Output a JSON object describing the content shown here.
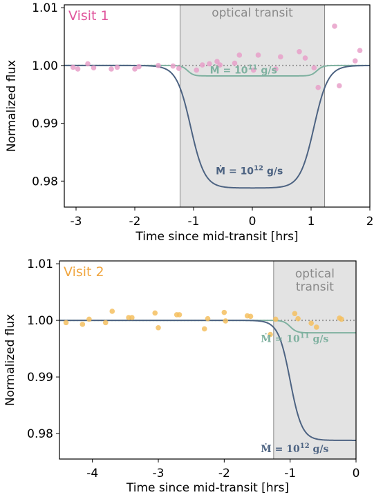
{
  "chart_data": [
    {
      "type": "scatter",
      "panel_label": "Visit 1",
      "shaded_label": "optical transit",
      "xlabel": "Time since mid-transit [hrs]",
      "ylabel": "Normalized flux",
      "xlim": [
        -3.2,
        2.0
      ],
      "ylim": [
        0.9755,
        1.0105
      ],
      "xticks": [
        -3,
        -2,
        -1,
        0,
        1,
        2
      ],
      "xtick_labels": [
        "-3",
        "-2",
        "-1",
        "0",
        "1",
        "2"
      ],
      "yticks": [
        0.98,
        0.99,
        1.0,
        1.01
      ],
      "ytick_labels": [
        "0.98",
        "0.99",
        "1.00",
        "1.01"
      ],
      "shaded_region": [
        -1.23,
        1.23
      ],
      "baseline": 1.0,
      "points": {
        "color": "#e8a0c9",
        "x": [
          -3.05,
          -2.97,
          -2.8,
          -2.7,
          -2.4,
          -2.3,
          -2.0,
          -1.93,
          -1.6,
          -1.35,
          -1.25,
          -0.95,
          -0.85,
          -0.73,
          -0.6,
          -0.55,
          -0.3,
          -0.22,
          0.02,
          0.1,
          0.4,
          0.48,
          0.8,
          0.9,
          1.05,
          1.12,
          1.4,
          1.48,
          1.75,
          1.83
        ],
        "y": [
          0.9997,
          0.9994,
          1.0003,
          0.9996,
          0.9994,
          0.9997,
          0.9994,
          0.9998,
          1.0,
          0.9999,
          0.9995,
          0.9992,
          1.0001,
          1.0003,
          1.0007,
          1.0001,
          1.0004,
          1.0018,
          0.9992,
          1.0018,
          0.9994,
          1.0015,
          1.0024,
          1.0013,
          0.9996,
          0.9962,
          1.0068,
          0.9965,
          1.0008,
          1.0026
        ]
      },
      "series": [
        {
          "label": "Ṁ = 10¹¹ g/s",
          "color": "#7fb1a0",
          "depth": 0.0018
        },
        {
          "label": "Ṁ = 10¹² g/s",
          "color": "#4d6382",
          "depth": 0.0212
        }
      ],
      "annotations": [
        {
          "text": "Ṁ = 10",
          "sup": "11",
          "unit": " g/s",
          "x": -0.15,
          "y": 0.9986,
          "color": "#7fb1a0",
          "serif": false
        },
        {
          "text": "Ṁ = 10",
          "sup": "12",
          "unit": " g/s",
          "x": -0.05,
          "y": 0.9812,
          "color": "#4d6382",
          "serif": false
        }
      ]
    },
    {
      "type": "scatter",
      "panel_label": "Visit 2",
      "shaded_label": "optical transit",
      "xlabel": "Time since mid-transit [hrs]",
      "ylabel": "Normalized flux",
      "xlim": [
        -4.5,
        0.0
      ],
      "ylim": [
        0.9755,
        1.0105
      ],
      "xticks": [
        -4,
        -3,
        -2,
        -1,
        0
      ],
      "xtick_labels": [
        "-4",
        "-3",
        "-2",
        "-1",
        "0"
      ],
      "yticks": [
        0.98,
        0.99,
        1.0,
        1.01
      ],
      "ytick_labels": [
        "0.98",
        "0.99",
        "1.00",
        "1.01"
      ],
      "shaded_region": [
        -1.25,
        0.0
      ],
      "baseline": 1.0,
      "points": {
        "color": "#f4c060",
        "x": [
          -4.4,
          -4.15,
          -4.05,
          -3.8,
          -3.7,
          -3.45,
          -3.4,
          -3.05,
          -3.0,
          -2.72,
          -2.68,
          -2.3,
          -2.25,
          -2.0,
          -1.98,
          -1.65,
          -1.6,
          -1.3,
          -1.22,
          -0.93,
          -0.88,
          -0.68,
          -0.6,
          -0.25,
          -0.22
        ],
        "y": [
          0.9996,
          0.9993,
          1.0002,
          0.9996,
          1.0016,
          1.0005,
          1.0005,
          1.0013,
          0.9987,
          1.001,
          1.001,
          0.9985,
          1.0003,
          1.0014,
          0.9999,
          1.0008,
          1.0007,
          0.9975,
          1.0002,
          1.0012,
          1.0003,
          0.9995,
          0.9988,
          1.0004,
          1.0002
        ]
      },
      "series": [
        {
          "label": "Ṁ = 10¹¹ g/s",
          "color": "#7fb1a0",
          "depth": 0.0022
        },
        {
          "label": "Ṁ = 10¹² g/s",
          "color": "#4d6382",
          "depth": 0.0212
        }
      ],
      "annotations": [
        {
          "text": "Ṁ = 10",
          "sup": "11",
          "unit": " g/s",
          "x": -0.93,
          "y": 0.9962,
          "color": "#7fb1a0",
          "serif": true
        },
        {
          "text": "Ṁ = 10",
          "sup": "12",
          "unit": " g/s",
          "x": -0.93,
          "y": 0.9767,
          "color": "#4d6382",
          "serif": true
        }
      ]
    }
  ]
}
